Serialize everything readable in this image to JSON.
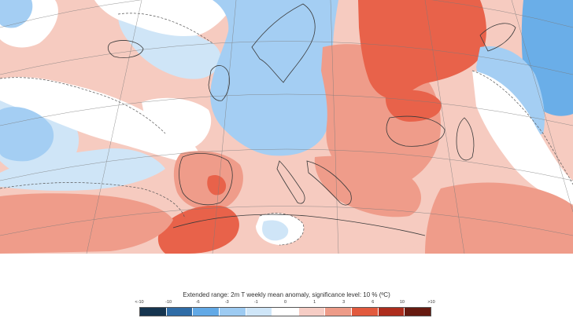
{
  "legend": {
    "title": "Extended range: 2m T weekly mean anomaly, significance level: 10 % (ºC)",
    "ticks": [
      "<-10",
      "-10",
      "-6",
      "-3",
      "-1",
      "0",
      "1",
      "3",
      "6",
      "10",
      ">10"
    ],
    "colors": [
      "#15344f",
      "#2f6ca6",
      "#62a9e6",
      "#9dcbf2",
      "#cfe6f8",
      "#ffffff",
      "#f6cdc5",
      "#ed9b88",
      "#e25a3e",
      "#ad2d1d",
      "#661a10"
    ]
  },
  "map": {
    "palette": {
      "strong_warm": "#e8624a",
      "warm": "#ef9c8a",
      "light_warm": "#f6cbc0",
      "neutral": "#ffffff",
      "light_cool": "#cfe5f7",
      "cool": "#a4cef3",
      "strong_cool": "#6aaee8",
      "land_edge": "#3a3a3a",
      "grid": "#7a7a7a"
    },
    "regions": [
      {
        "name": "western-atlantic-anomaly",
        "category": "light_cool"
      },
      {
        "name": "northern-atlantic-anomaly",
        "category": "light_warm"
      },
      {
        "name": "northwest-europe-anomaly",
        "category": "cool"
      },
      {
        "name": "russia-anomaly",
        "category": "strong_warm"
      },
      {
        "name": "siberia-anomaly",
        "category": "strong_cool"
      },
      {
        "name": "north-africa-anomaly",
        "category": "strong_warm"
      },
      {
        "name": "central-europe-anomaly",
        "category": "warm"
      },
      {
        "name": "mediterranean-anomaly",
        "category": "light_warm"
      }
    ]
  }
}
